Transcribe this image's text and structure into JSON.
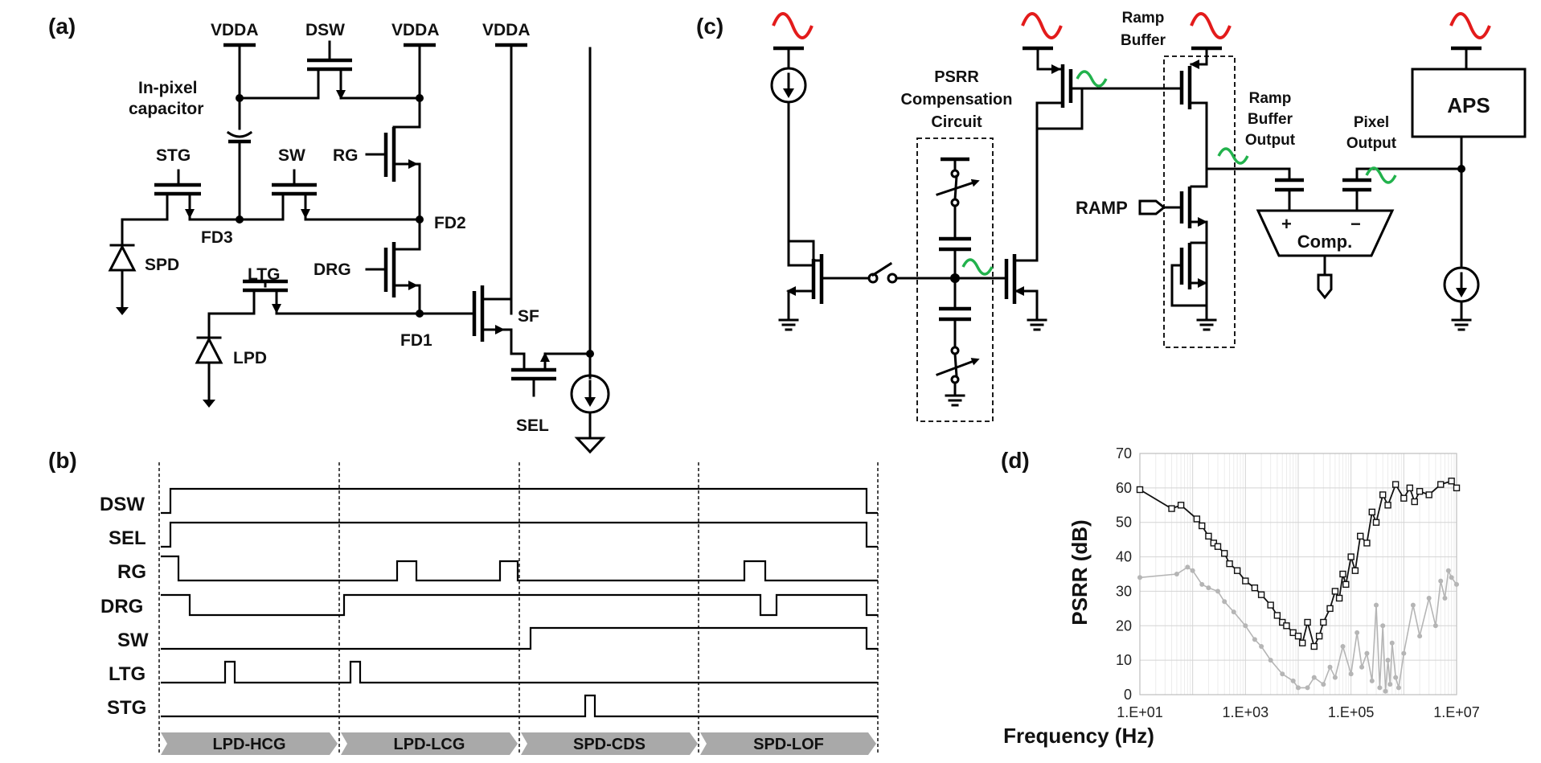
{
  "panel_labels": {
    "a": "(a)",
    "b": "(b)",
    "c": "(c)",
    "d": "(d)"
  },
  "circuit_a": {
    "supply": "VDDA",
    "in_pixel_capacitor": [
      "In-pixel",
      "capacitor"
    ],
    "transistors": {
      "dsw": "DSW",
      "rg": "RG",
      "drg": "DRG",
      "sw": "SW",
      "stg": "STG",
      "ltg": "LTG",
      "sf": "SF",
      "sel": "SEL"
    },
    "nodes": {
      "fd1": "FD1",
      "fd2": "FD2",
      "fd3": "FD3"
    },
    "diodes": {
      "spd": "SPD",
      "lpd": "LPD"
    }
  },
  "timing_b": {
    "signals": [
      "DSW",
      "SEL",
      "RG",
      "DRG",
      "SW",
      "LTG",
      "STG"
    ],
    "phases": [
      "LPD-HCG",
      "LPD-LCG",
      "SPD-CDS",
      "SPD-LOF"
    ]
  },
  "circuit_c": {
    "psrr_block": [
      "PSRR",
      "Compensation",
      "Circuit"
    ],
    "ramp_buffer": [
      "Ramp",
      "Buffer"
    ],
    "ramp_buffer_output": [
      "Ramp",
      "Buffer",
      "Output"
    ],
    "pixel_output": [
      "Pixel",
      "Output"
    ],
    "ramp": "RAMP",
    "comparator": "Comp.",
    "aps": "APS",
    "plus": "+",
    "minus": "−",
    "colors": {
      "supply_ripple": "#e31b1b",
      "compensated_ripple": "#22b24c"
    }
  },
  "chart_data": {
    "type": "line",
    "ylabel": "PSRR (dB)",
    "xlabel": "Frequency (Hz)",
    "x_scale": "log",
    "xlim": [
      10,
      10000000
    ],
    "ylim": [
      0,
      70
    ],
    "x_ticks": [
      "1.E+01",
      "1.E+03",
      "1.E+05",
      "1.E+07"
    ],
    "y_ticks": [
      "0",
      "10",
      "20",
      "30",
      "40",
      "50",
      "60",
      "70"
    ],
    "grid": true,
    "series": [
      {
        "color": "#111111",
        "marker": "square",
        "x": [
          10,
          40,
          60,
          120,
          150,
          200,
          250,
          300,
          400,
          500,
          700,
          1000,
          1500,
          2000,
          3000,
          4000,
          5000,
          6000,
          8000,
          10000,
          12000,
          15000,
          20000,
          25000,
          30000,
          40000,
          50000,
          60000,
          70000,
          80000,
          100000,
          120000,
          150000,
          200000,
          250000,
          300000,
          400000,
          500000,
          700000,
          1000000,
          1300000,
          1600000,
          2000000,
          3000000,
          5000000,
          8000000,
          10000000
        ],
        "y": [
          59.5,
          54,
          55,
          51,
          49,
          46,
          44,
          43,
          41,
          38,
          36,
          33,
          31,
          29,
          26,
          23,
          21,
          20,
          18,
          17,
          15,
          21,
          14,
          17,
          21,
          25,
          30,
          28,
          35,
          32,
          40,
          36,
          46,
          44,
          53,
          50,
          58,
          55,
          61,
          57,
          60,
          56,
          59,
          58,
          61,
          62,
          60
        ]
      },
      {
        "color": "#b5b5b5",
        "marker": "circle",
        "x": [
          10,
          50,
          80,
          100,
          150,
          200,
          300,
          400,
          600,
          1000,
          1500,
          2000,
          3000,
          5000,
          8000,
          10000,
          15000,
          20000,
          30000,
          40000,
          50000,
          70000,
          100000,
          130000,
          160000,
          200000,
          250000,
          300000,
          350000,
          400000,
          450000,
          500000,
          550000,
          600000,
          700000,
          800000,
          1000000,
          1500000,
          2000000,
          3000000,
          4000000,
          5000000,
          6000000,
          7000000,
          8000000,
          10000000
        ],
        "y": [
          34,
          35,
          37,
          36,
          32,
          31,
          30,
          27,
          24,
          20,
          16,
          14,
          10,
          6,
          4,
          2,
          2,
          5,
          3,
          8,
          5,
          14,
          6,
          18,
          8,
          12,
          4,
          26,
          2,
          20,
          1,
          10,
          3,
          15,
          5,
          2,
          12,
          26,
          17,
          28,
          20,
          33,
          28,
          36,
          34,
          32
        ]
      }
    ]
  }
}
